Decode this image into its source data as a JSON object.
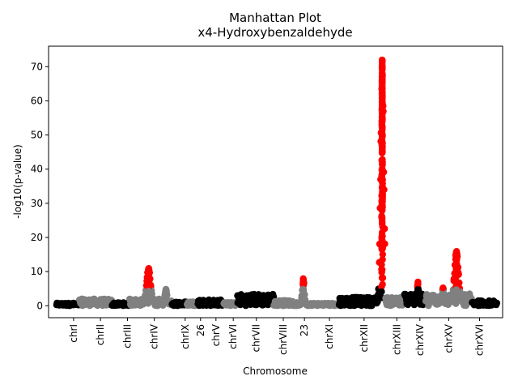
{
  "chart_data": {
    "type": "scatter",
    "title": "Manhattan Plot",
    "subtitle": "x4-Hydroxybenzaldehyde",
    "xlabel": "Chromosome",
    "ylabel": "-log10(p-value)",
    "ylim": [
      -3.5,
      76
    ],
    "yticks": [
      0,
      10,
      20,
      30,
      40,
      50,
      60,
      70
    ],
    "grid": false,
    "colors": {
      "black": "#000000",
      "gray": "#808080",
      "highlight": "#ff0000"
    },
    "chromosomes": [
      {
        "label": "chrI",
        "tick": 0.045,
        "x0": 0.0,
        "x1": 0.06,
        "color": "black",
        "base": 0.8,
        "peaks": []
      },
      {
        "label": "chrII",
        "tick": 0.115,
        "x0": 0.06,
        "x1": 0.145,
        "color": "gray",
        "base": 2.0,
        "peaks": []
      },
      {
        "label": "chrIII",
        "tick": 0.185,
        "x0": 0.145,
        "x1": 0.19,
        "color": "black",
        "base": 0.9,
        "peaks": []
      },
      {
        "label": "chrIV",
        "tick": 0.255,
        "x0": 0.19,
        "x1": 0.3,
        "color": "gray",
        "base": 2.0,
        "peaks": [
          {
            "x": 0.24,
            "y": 11.0,
            "w": 0.008
          },
          {
            "x": 0.285,
            "y": 5.0,
            "w": 0.004
          }
        ]
      },
      {
        "label": "chrIX",
        "tick": 0.335,
        "x0": 0.3,
        "x1": 0.34,
        "color": "black",
        "base": 1.2,
        "peaks": []
      },
      {
        "label": "26",
        "tick": 0.375,
        "x0": 0.34,
        "x1": 0.368,
        "color": "gray",
        "base": 1.3,
        "peaks": []
      },
      {
        "label": "chrV",
        "tick": 0.415,
        "x0": 0.368,
        "x1": 0.435,
        "color": "black",
        "base": 1.8,
        "peaks": []
      },
      {
        "label": "chrVI",
        "tick": 0.46,
        "x0": 0.435,
        "x1": 0.47,
        "color": "gray",
        "base": 1.0,
        "peaks": []
      },
      {
        "label": "chrVII",
        "tick": 0.52,
        "x0": 0.47,
        "x1": 0.565,
        "color": "black",
        "base": 3.5,
        "peaks": []
      },
      {
        "label": "chrVIII",
        "tick": 0.59,
        "x0": 0.565,
        "x1": 0.615,
        "color": "gray",
        "base": 1.6,
        "peaks": []
      },
      {
        "label": "23",
        "tick": 0.645,
        "x0": 0.615,
        "x1": 0.65,
        "color": "gray",
        "base": 1.0,
        "peaks": [
          {
            "x": 0.642,
            "y": 8.0,
            "w": 0.004
          }
        ]
      },
      {
        "label": "chrXI",
        "tick": 0.71,
        "x0": 0.65,
        "x1": 0.735,
        "color": "gray",
        "base": 0.8,
        "peaks": []
      },
      {
        "label": "chrXII",
        "tick": 0.8,
        "x0": 0.735,
        "x1": 0.855,
        "color": "black",
        "base": 2.5,
        "peaks": [
          {
            "x": 0.847,
            "y": 72.0,
            "w": 0.006
          }
        ]
      },
      {
        "label": "chrXIII",
        "tick": 0.885,
        "x0": 0.855,
        "x1": 0.905,
        "color": "gray",
        "base": 2.5,
        "peaks": []
      },
      {
        "label": "chrXIV",
        "tick": 0.945,
        "x0": 0.905,
        "x1": 0.96,
        "color": "black",
        "base": 3.5,
        "peaks": [
          {
            "x": 0.94,
            "y": 7.0,
            "w": 0.003
          }
        ]
      },
      {
        "label": "chrXV",
        "tick": 1.02,
        "x0": 0.96,
        "x1": 1.08,
        "color": "gray",
        "base": 3.5,
        "peaks": [
          {
            "x": 1.005,
            "y": 5.5,
            "w": 0.004
          },
          {
            "x": 1.04,
            "y": 16.0,
            "w": 0.008
          }
        ]
      },
      {
        "label": "chrXVI",
        "tick": 1.1,
        "x0": 1.08,
        "x1": 1.145,
        "color": "black",
        "base": 1.5,
        "peaks": []
      }
    ],
    "xlim": [
      -0.02,
      1.16
    ],
    "threshold": 5.0
  }
}
